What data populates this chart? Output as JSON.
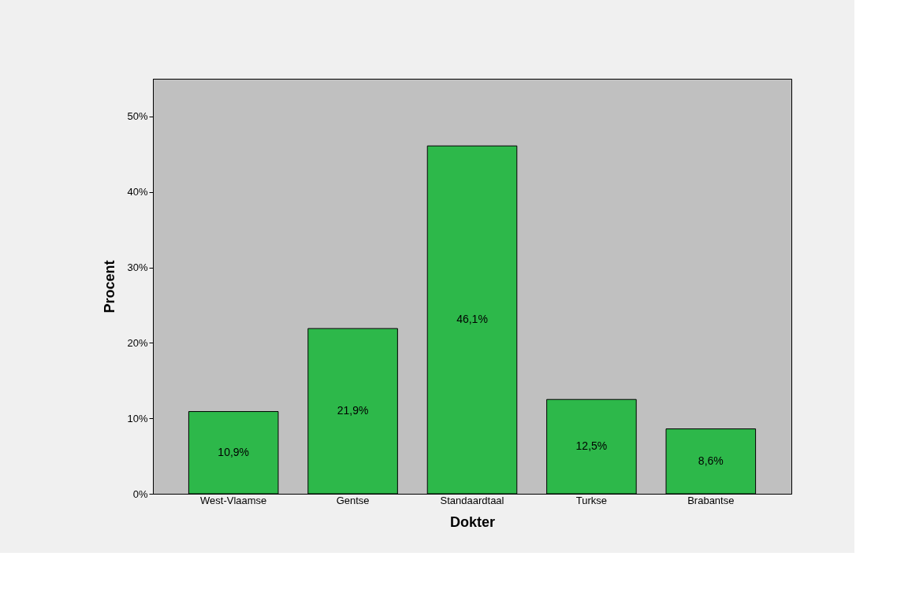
{
  "chart_data": {
    "type": "bar",
    "xlabel": "Dokter",
    "ylabel": "Procent",
    "categories": [
      "West-Vlaamse",
      "Gentse",
      "Standaardtaal",
      "Turkse",
      "Brabantse"
    ],
    "values": [
      10.9,
      21.9,
      46.1,
      12.5,
      8.6
    ],
    "value_labels": [
      "10,9%",
      "21,9%",
      "46,1%",
      "12,5%",
      "8,6%"
    ],
    "color": "#2db84a",
    "ylim": [
      0,
      55
    ],
    "yticks": [
      {
        "value": 0,
        "label": "0%"
      },
      {
        "value": 10,
        "label": "10%"
      },
      {
        "value": 20,
        "label": "20%"
      },
      {
        "value": 30,
        "label": "30%"
      },
      {
        "value": 40,
        "label": "40%"
      },
      {
        "value": 50,
        "label": "50%"
      }
    ],
    "grid": false
  }
}
